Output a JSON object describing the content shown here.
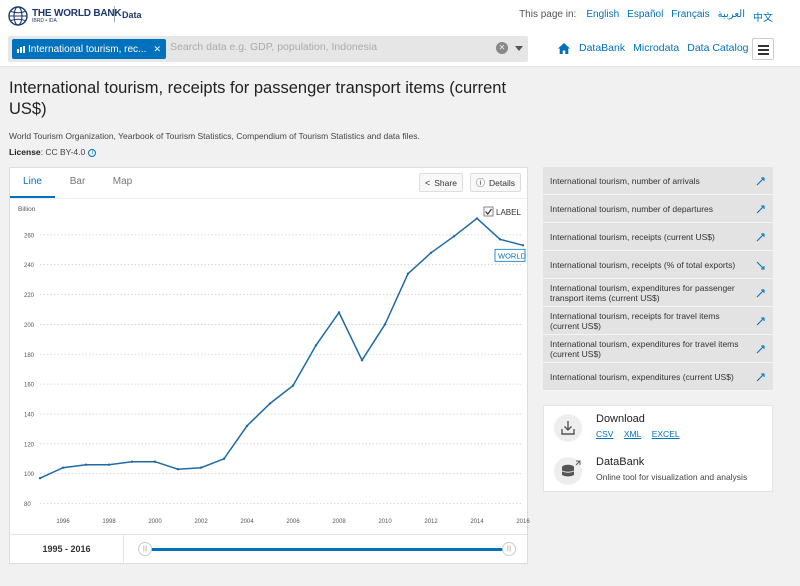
{
  "header": {
    "logo_title": "THE WORLD BANK",
    "logo_sub": "IBRD • IDA",
    "section": "Data",
    "page_in_label": "This page in:",
    "languages": [
      "English",
      "Español",
      "Français",
      "العربية",
      "中文"
    ]
  },
  "search": {
    "chip_label": "International tourism, rec...",
    "placeholder": "Search data e.g. GDP, population, Indonesia"
  },
  "nav": {
    "links": [
      "DataBank",
      "Microdata",
      "Data Catalog"
    ]
  },
  "page": {
    "title": "International tourism, receipts for passenger transport items (current US$)",
    "source": "World Tourism Organization, Yearbook of Tourism Statistics, Compendium of Tourism Statistics and data files.",
    "license_label": "License",
    "license_value": ": CC BY-4.0"
  },
  "chart_tabs": [
    "Line",
    "Bar",
    "Map"
  ],
  "chart_buttons": {
    "share": "Share",
    "details": "Details"
  },
  "chart_data": {
    "type": "line",
    "ylabel": "Billion",
    "label_toggle": "LABEL",
    "series": [
      {
        "name": "WORLD",
        "x": [
          1995,
          1996,
          1997,
          1998,
          1999,
          2000,
          2001,
          2002,
          2003,
          2004,
          2005,
          2006,
          2007,
          2008,
          2009,
          2010,
          2011,
          2012,
          2013,
          2014,
          2015,
          2016
        ],
        "values": [
          97,
          104,
          106,
          106,
          108,
          108,
          103,
          104,
          110,
          132,
          147,
          159,
          186,
          208,
          176,
          200,
          234,
          248,
          259,
          271,
          257,
          253
        ]
      }
    ],
    "yticks": [
      80,
      100,
      120,
      140,
      160,
      180,
      200,
      220,
      240,
      260
    ],
    "xticks": [
      1996,
      1998,
      2000,
      2002,
      2004,
      2006,
      2008,
      2010,
      2012,
      2014,
      2016
    ],
    "ylim": [
      75,
      280
    ],
    "xlim": [
      1995,
      2016
    ],
    "grid": true,
    "line_color": "#1f6aa5"
  },
  "range": {
    "label": "1995 - 2016"
  },
  "related": [
    "International tourism, number of arrivals",
    "International tourism, number of departures",
    "International tourism, receipts (current US$)",
    "International tourism, receipts (% of total exports)",
    "International tourism, expenditures for passenger transport items (current US$)",
    "International tourism, receipts for travel items (current US$)",
    "International tourism, expenditures for travel items (current US$)",
    "International tourism, expenditures (current US$)"
  ],
  "download": {
    "title": "Download",
    "formats": [
      "CSV",
      "XML",
      "EXCEL"
    ]
  },
  "databank": {
    "title": "DataBank",
    "subtitle": "Online tool for visualization and analysis"
  },
  "colors": {
    "accent": "#0071bc",
    "brand": "#1d3a6e"
  }
}
